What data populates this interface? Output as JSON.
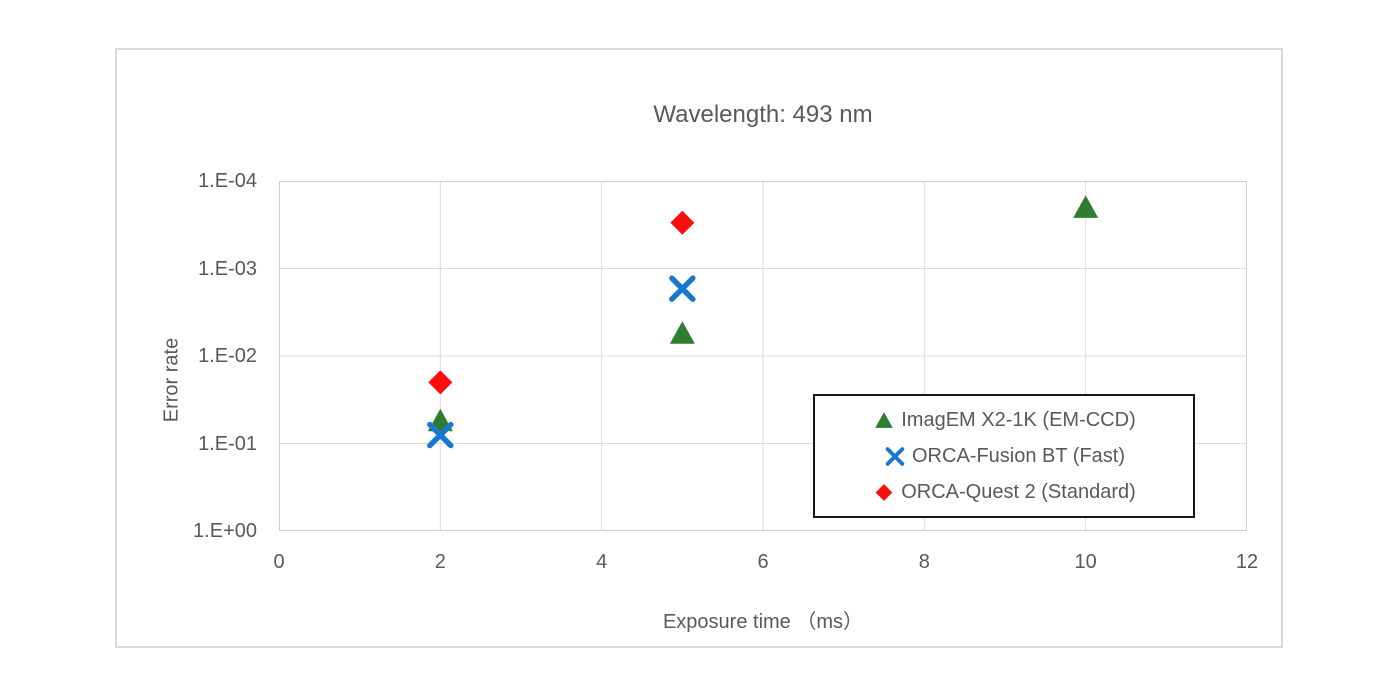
{
  "chart_data": {
    "type": "scatter",
    "title": "Wavelength: 493 nm",
    "xlabel": "Exposure time （ms）",
    "ylabel": "Error rate",
    "x_ticks": [
      0,
      2,
      4,
      6,
      8,
      10,
      12
    ],
    "xlim": [
      0,
      12
    ],
    "y_axis": {
      "scale": "log",
      "direction": "reversed-top-is-smallest",
      "tick_labels": [
        "1.E-04",
        "1.E-03",
        "1.E-02",
        "1.E-01",
        "1.E+00"
      ],
      "tick_exponents": [
        -4,
        -3,
        -2,
        -1,
        0
      ],
      "top_exponent": -4,
      "bottom_exponent": 0
    },
    "grid": true,
    "legend_position": "inside-right",
    "series": [
      {
        "name": "ImagEM X2-1K (EM-CCD)",
        "marker": "triangle",
        "color": "#2E7D31",
        "points": [
          [
            2,
            0.055
          ],
          [
            5,
            0.0055
          ],
          [
            10,
            0.0002
          ]
        ]
      },
      {
        "name": "ORCA-Fusion BT (Fast)",
        "marker": "x",
        "color": "#1878CE",
        "points": [
          [
            2,
            0.08
          ],
          [
            5,
            0.0017
          ]
        ]
      },
      {
        "name": "ORCA-Quest 2 (Standard)",
        "marker": "diamond",
        "color": "#FA0F0F",
        "points": [
          [
            2,
            0.02
          ],
          [
            5,
            0.0003
          ]
        ]
      }
    ],
    "colors": {
      "text": "#595959",
      "gridline": "#DCDCDC",
      "plot_border": "#CFCFCF",
      "frame_border": "#D9D9D9",
      "legend_border": "#161616"
    }
  }
}
